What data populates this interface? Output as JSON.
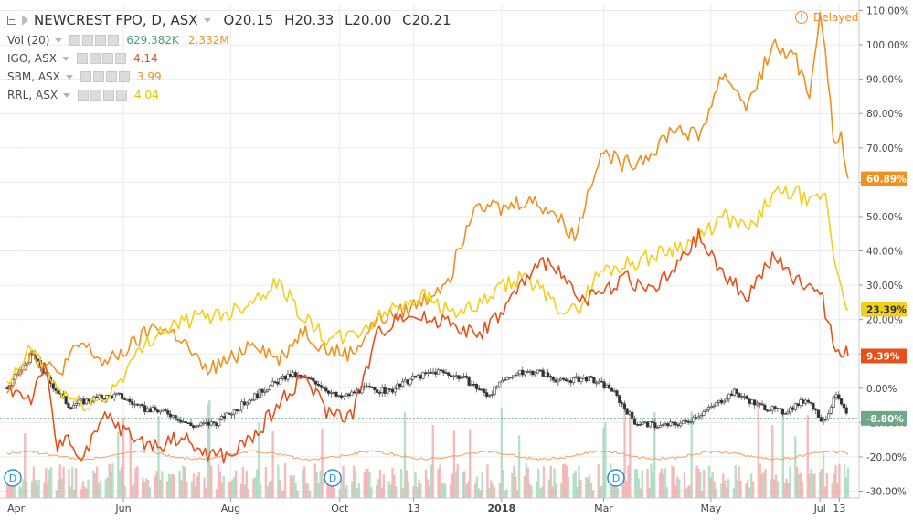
{
  "legend": {
    "symbol": "NEWCREST FPO, D, ASX",
    "open": "O20.15",
    "high": "H20.33",
    "low": "L20.00",
    "close": "C20.21",
    "volume_label": "Vol (20)",
    "volume_value": "629.382K",
    "volume_ma": "2.332M",
    "comparisons": [
      {
        "label": "IGO, ASX",
        "value": "4.14",
        "color": "#e8501a"
      },
      {
        "label": "SBM, ASX",
        "value": "3.99",
        "color": "#f0901e"
      },
      {
        "label": "RRL, ASX",
        "value": "4.04",
        "color": "#f3cf1c"
      }
    ]
  },
  "status": {
    "delayed_icon": "info-icon",
    "delayed_label": "Delayed"
  },
  "colors": {
    "sbm": "#f0901e",
    "igo": "#e8501a",
    "rrl": "#f3cf1c",
    "ncm_up": "#4c9e6e",
    "ncm_down": "#e05a5a"
  },
  "chart_data": {
    "type": "line",
    "y_unit": "percent change",
    "ylim": [
      -32,
      112
    ],
    "y_ticks": [
      "110.00%",
      "100.00%",
      "90.00%",
      "80.00%",
      "70.00%",
      "60.00%",
      "50.00%",
      "40.00%",
      "30.00%",
      "20.00%",
      "10.00%",
      "0.00%",
      "-10.00%",
      "-20.00%",
      "-30.00%"
    ],
    "x_range": [
      "2017-03-27",
      "2018-07-18"
    ],
    "x_ticks": [
      {
        "label": "Apr",
        "date": "2017-04-01"
      },
      {
        "label": "Jun",
        "date": "2017-06-01"
      },
      {
        "label": "Aug",
        "date": "2017-08-01"
      },
      {
        "label": "Oct",
        "date": "2017-10-02"
      },
      {
        "label": "13",
        "date": "2017-11-13"
      },
      {
        "label": "2018",
        "date": "2018-01-02",
        "bold": true
      },
      {
        "label": "Mar",
        "date": "2018-03-01"
      },
      {
        "label": "May",
        "date": "2018-05-01"
      },
      {
        "label": "Jul",
        "date": "2018-07-02"
      },
      {
        "label": "13",
        "date": "2018-07-13"
      }
    ],
    "series": [
      {
        "name": "SBM, ASX",
        "color": "#f0901e",
        "last_label": "60.89%",
        "points": [
          [
            "2017-03-27",
            0
          ],
          [
            "2017-04-10",
            10
          ],
          [
            "2017-04-24",
            4
          ],
          [
            "2017-05-08",
            13
          ],
          [
            "2017-05-22",
            7
          ],
          [
            "2017-06-05",
            12
          ],
          [
            "2017-06-19",
            18
          ],
          [
            "2017-07-03",
            15
          ],
          [
            "2017-07-17",
            5
          ],
          [
            "2017-07-31",
            8
          ],
          [
            "2017-08-14",
            14
          ],
          [
            "2017-08-28",
            8
          ],
          [
            "2017-09-11",
            17
          ],
          [
            "2017-09-25",
            11
          ],
          [
            "2017-10-09",
            10
          ],
          [
            "2017-10-23",
            20
          ],
          [
            "2017-11-06",
            22
          ],
          [
            "2017-11-20",
            26
          ],
          [
            "2017-12-04",
            33
          ],
          [
            "2017-12-18",
            55
          ],
          [
            "2018-01-02",
            52
          ],
          [
            "2018-01-16",
            55
          ],
          [
            "2018-01-30",
            52
          ],
          [
            "2018-02-13",
            44
          ],
          [
            "2018-02-27",
            69
          ],
          [
            "2018-03-13",
            65
          ],
          [
            "2018-03-27",
            68
          ],
          [
            "2018-04-10",
            76
          ],
          [
            "2018-04-24",
            73
          ],
          [
            "2018-05-08",
            92
          ],
          [
            "2018-05-22",
            82
          ],
          [
            "2018-06-05",
            100
          ],
          [
            "2018-06-19",
            95
          ],
          [
            "2018-06-26",
            85
          ],
          [
            "2018-07-02",
            110
          ],
          [
            "2018-07-06",
            95
          ],
          [
            "2018-07-10",
            68
          ],
          [
            "2018-07-14",
            75
          ],
          [
            "2018-07-18",
            61
          ]
        ]
      },
      {
        "name": "RRL, ASX",
        "color": "#f3cf1c",
        "last_label": "23.39%",
        "points": [
          [
            "2017-03-27",
            0
          ],
          [
            "2017-04-10",
            12
          ],
          [
            "2017-04-24",
            0
          ],
          [
            "2017-05-08",
            -5
          ],
          [
            "2017-05-22",
            -3
          ],
          [
            "2017-06-05",
            7
          ],
          [
            "2017-06-19",
            16
          ],
          [
            "2017-07-03",
            19
          ],
          [
            "2017-07-17",
            21
          ],
          [
            "2017-07-31",
            22
          ],
          [
            "2017-08-14",
            26
          ],
          [
            "2017-08-28",
            31
          ],
          [
            "2017-09-11",
            21
          ],
          [
            "2017-09-25",
            14
          ],
          [
            "2017-10-09",
            15
          ],
          [
            "2017-10-23",
            20
          ],
          [
            "2017-11-06",
            25
          ],
          [
            "2017-11-20",
            27
          ],
          [
            "2017-12-04",
            22
          ],
          [
            "2017-12-18",
            23
          ],
          [
            "2018-01-02",
            29
          ],
          [
            "2018-01-16",
            33
          ],
          [
            "2018-01-30",
            25
          ],
          [
            "2018-02-13",
            22
          ],
          [
            "2018-02-27",
            34
          ],
          [
            "2018-03-13",
            36
          ],
          [
            "2018-03-27",
            38
          ],
          [
            "2018-04-10",
            41
          ],
          [
            "2018-04-24",
            43
          ],
          [
            "2018-05-08",
            50
          ],
          [
            "2018-05-22",
            46
          ],
          [
            "2018-06-05",
            56
          ],
          [
            "2018-06-19",
            57
          ],
          [
            "2018-06-26",
            53
          ],
          [
            "2018-07-02",
            56
          ],
          [
            "2018-07-06",
            55
          ],
          [
            "2018-07-10",
            37
          ],
          [
            "2018-07-14",
            31
          ],
          [
            "2018-07-18",
            23
          ]
        ]
      },
      {
        "name": "IGO, ASX",
        "color": "#e8501a",
        "last_label": "9.39%",
        "points": [
          [
            "2017-03-27",
            0
          ],
          [
            "2017-04-10",
            -3
          ],
          [
            "2017-04-17",
            8
          ],
          [
            "2017-04-24",
            -18
          ],
          [
            "2017-05-01",
            -13
          ],
          [
            "2017-05-08",
            -22
          ],
          [
            "2017-05-22",
            -8
          ],
          [
            "2017-06-05",
            -14
          ],
          [
            "2017-06-19",
            -17
          ],
          [
            "2017-07-03",
            -14
          ],
          [
            "2017-07-17",
            -19
          ],
          [
            "2017-07-31",
            -20
          ],
          [
            "2017-08-14",
            -14
          ],
          [
            "2017-08-28",
            -5
          ],
          [
            "2017-09-11",
            4
          ],
          [
            "2017-09-25",
            -7
          ],
          [
            "2017-10-09",
            -8
          ],
          [
            "2017-10-23",
            15
          ],
          [
            "2017-11-06",
            22
          ],
          [
            "2017-11-20",
            20
          ],
          [
            "2017-12-04",
            20
          ],
          [
            "2017-12-18",
            15
          ],
          [
            "2018-01-02",
            22
          ],
          [
            "2018-01-16",
            32
          ],
          [
            "2018-01-30",
            38
          ],
          [
            "2018-02-13",
            26
          ],
          [
            "2018-02-27",
            27
          ],
          [
            "2018-03-13",
            33
          ],
          [
            "2018-03-27",
            28
          ],
          [
            "2018-04-10",
            34
          ],
          [
            "2018-04-24",
            44
          ],
          [
            "2018-05-08",
            33
          ],
          [
            "2018-05-22",
            27
          ],
          [
            "2018-06-05",
            38
          ],
          [
            "2018-06-19",
            31
          ],
          [
            "2018-06-26",
            30
          ],
          [
            "2018-07-02",
            29
          ],
          [
            "2018-07-06",
            20
          ],
          [
            "2018-07-10",
            13
          ],
          [
            "2018-07-14",
            11
          ],
          [
            "2018-07-18",
            9.4
          ]
        ]
      },
      {
        "name": "NEWCREST FPO, D, ASX",
        "color": "#4c9e6e",
        "style": "candles",
        "last_label": "-8.80%",
        "points": [
          [
            "2017-03-27",
            0
          ],
          [
            "2017-04-10",
            10
          ],
          [
            "2017-04-20",
            2
          ],
          [
            "2017-05-01",
            -5
          ],
          [
            "2017-05-15",
            -3
          ],
          [
            "2017-05-29",
            -2
          ],
          [
            "2017-06-12",
            -6
          ],
          [
            "2017-06-26",
            -7
          ],
          [
            "2017-07-10",
            -11
          ],
          [
            "2017-07-24",
            -10
          ],
          [
            "2017-08-07",
            -5
          ],
          [
            "2017-08-21",
            0
          ],
          [
            "2017-09-04",
            4
          ],
          [
            "2017-09-18",
            2
          ],
          [
            "2017-10-02",
            -3
          ],
          [
            "2017-10-16",
            0
          ],
          [
            "2017-10-30",
            -1
          ],
          [
            "2017-11-13",
            3
          ],
          [
            "2017-11-27",
            5
          ],
          [
            "2017-12-11",
            3
          ],
          [
            "2017-12-25",
            -2
          ],
          [
            "2018-01-08",
            4
          ],
          [
            "2018-01-22",
            5
          ],
          [
            "2018-02-05",
            2
          ],
          [
            "2018-02-19",
            3
          ],
          [
            "2018-03-05",
            0
          ],
          [
            "2018-03-19",
            -10
          ],
          [
            "2018-04-02",
            -11
          ],
          [
            "2018-04-16",
            -10
          ],
          [
            "2018-04-30",
            -6
          ],
          [
            "2018-05-14",
            -1
          ],
          [
            "2018-05-28",
            -5
          ],
          [
            "2018-06-11",
            -7
          ],
          [
            "2018-06-25",
            -3
          ],
          [
            "2018-07-04",
            -10
          ],
          [
            "2018-07-11",
            -2
          ],
          [
            "2018-07-18",
            -8.8
          ]
        ]
      }
    ],
    "volume": {
      "name": "Vol (20)"
    },
    "event_markers": [
      {
        "label": "D",
        "date": "2017-03-27"
      },
      {
        "label": "D",
        "date": "2017-09-28"
      },
      {
        "label": "D",
        "date": "2018-03-08"
      }
    ],
    "grid": true
  }
}
